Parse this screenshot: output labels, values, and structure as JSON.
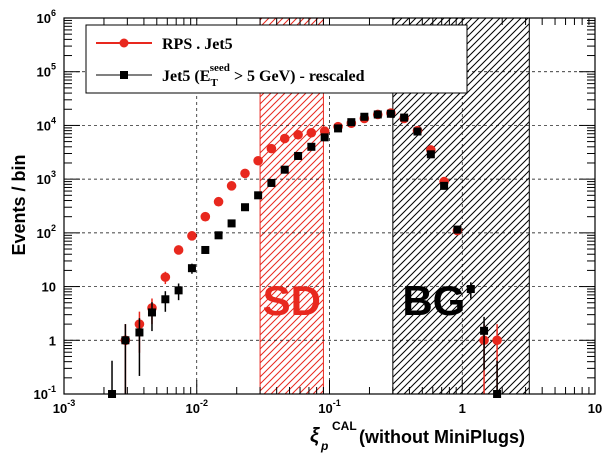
{
  "chart_data": {
    "type": "scatter",
    "xscale": "log",
    "yscale": "log",
    "xlim": [
      0.001,
      10
    ],
    "ylim": [
      0.1,
      1000000
    ],
    "xlabel": "ξp",
    "xlabel_sup": "CAL",
    "xlabel_suffix": "(without MiniPlugs)",
    "ylabel": "Events / bin",
    "x_ticks": [
      {
        "value": 0.001,
        "base": "10",
        "exp": "-3"
      },
      {
        "value": 0.01,
        "base": "10",
        "exp": "-2"
      },
      {
        "value": 0.1,
        "base": "10",
        "exp": "-1"
      },
      {
        "value": 1,
        "base": "1",
        "exp": ""
      },
      {
        "value": 10,
        "base": "10",
        "exp": ""
      }
    ],
    "y_ticks": [
      {
        "value": 0.1,
        "base": "10",
        "exp": "-1"
      },
      {
        "value": 1,
        "base": "1",
        "exp": ""
      },
      {
        "value": 10,
        "base": "10",
        "exp": ""
      },
      {
        "value": 100,
        "base": "10",
        "exp": "2"
      },
      {
        "value": 1000,
        "base": "10",
        "exp": "3"
      },
      {
        "value": 10000,
        "base": "10",
        "exp": "4"
      },
      {
        "value": 100000,
        "base": "10",
        "exp": "5"
      },
      {
        "value": 1000000,
        "base": "10",
        "exp": "6"
      }
    ],
    "regions": [
      {
        "label": "SD",
        "x": [
          0.03,
          0.09
        ],
        "color": "#e8281e"
      },
      {
        "label": "BG",
        "x": [
          0.3,
          3.2
        ],
        "color": "#000000"
      }
    ],
    "legend_position": "top-left",
    "series": [
      {
        "name": "RPS . Jet5",
        "color": "#e8281e",
        "marker": "circle",
        "points": [
          {
            "x": 0.0029,
            "y": 1
          },
          {
            "x": 0.0037,
            "y": 2
          },
          {
            "x": 0.0046,
            "y": 4
          },
          {
            "x": 0.0058,
            "y": 15
          },
          {
            "x": 0.0073,
            "y": 48
          },
          {
            "x": 0.0092,
            "y": 88
          },
          {
            "x": 0.0116,
            "y": 200
          },
          {
            "x": 0.0146,
            "y": 380
          },
          {
            "x": 0.0183,
            "y": 750
          },
          {
            "x": 0.0231,
            "y": 1280
          },
          {
            "x": 0.029,
            "y": 2200
          },
          {
            "x": 0.0365,
            "y": 3700
          },
          {
            "x": 0.046,
            "y": 5700
          },
          {
            "x": 0.058,
            "y": 6700
          },
          {
            "x": 0.073,
            "y": 7300
          },
          {
            "x": 0.092,
            "y": 7800
          },
          {
            "x": 0.116,
            "y": 9500
          },
          {
            "x": 0.146,
            "y": 11000
          },
          {
            "x": 0.183,
            "y": 13500
          },
          {
            "x": 0.231,
            "y": 16000
          },
          {
            "x": 0.29,
            "y": 17000
          },
          {
            "x": 0.365,
            "y": 13500
          },
          {
            "x": 0.46,
            "y": 8000
          },
          {
            "x": 0.58,
            "y": 3500
          },
          {
            "x": 0.73,
            "y": 900
          },
          {
            "x": 0.92,
            "y": 110
          },
          {
            "x": 1.46,
            "y": 1
          },
          {
            "x": 1.83,
            "y": 1
          }
        ]
      },
      {
        "name": "Jet5 (E_T^seed > 5 GeV) - rescaled",
        "legend_parts": {
          "a": "Jet5 (E",
          "sub": "T",
          "sup": "seed",
          "b": " > 5 GeV) - rescaled"
        },
        "color": "#000000",
        "marker": "square",
        "points": [
          {
            "x": 0.0023,
            "y": 0.1
          },
          {
            "x": 0.0029,
            "y": 1
          },
          {
            "x": 0.0037,
            "y": 1.4
          },
          {
            "x": 0.0046,
            "y": 3.3
          },
          {
            "x": 0.0058,
            "y": 5.8
          },
          {
            "x": 0.0073,
            "y": 8.5
          },
          {
            "x": 0.0092,
            "y": 22
          },
          {
            "x": 0.0116,
            "y": 48
          },
          {
            "x": 0.0146,
            "y": 90
          },
          {
            "x": 0.0183,
            "y": 150
          },
          {
            "x": 0.0231,
            "y": 300
          },
          {
            "x": 0.029,
            "y": 500
          },
          {
            "x": 0.0365,
            "y": 850
          },
          {
            "x": 0.046,
            "y": 1500
          },
          {
            "x": 0.058,
            "y": 2700
          },
          {
            "x": 0.073,
            "y": 4000
          },
          {
            "x": 0.092,
            "y": 6000
          },
          {
            "x": 0.116,
            "y": 8800
          },
          {
            "x": 0.146,
            "y": 11500
          },
          {
            "x": 0.183,
            "y": 14500
          },
          {
            "x": 0.231,
            "y": 16000
          },
          {
            "x": 0.29,
            "y": 16500
          },
          {
            "x": 0.365,
            "y": 14000
          },
          {
            "x": 0.46,
            "y": 7700
          },
          {
            "x": 0.58,
            "y": 2900
          },
          {
            "x": 0.73,
            "y": 750
          },
          {
            "x": 0.92,
            "y": 115
          },
          {
            "x": 1.16,
            "y": 9
          },
          {
            "x": 1.46,
            "y": 1.5
          },
          {
            "x": 1.83,
            "y": 0.1
          }
        ]
      }
    ]
  }
}
